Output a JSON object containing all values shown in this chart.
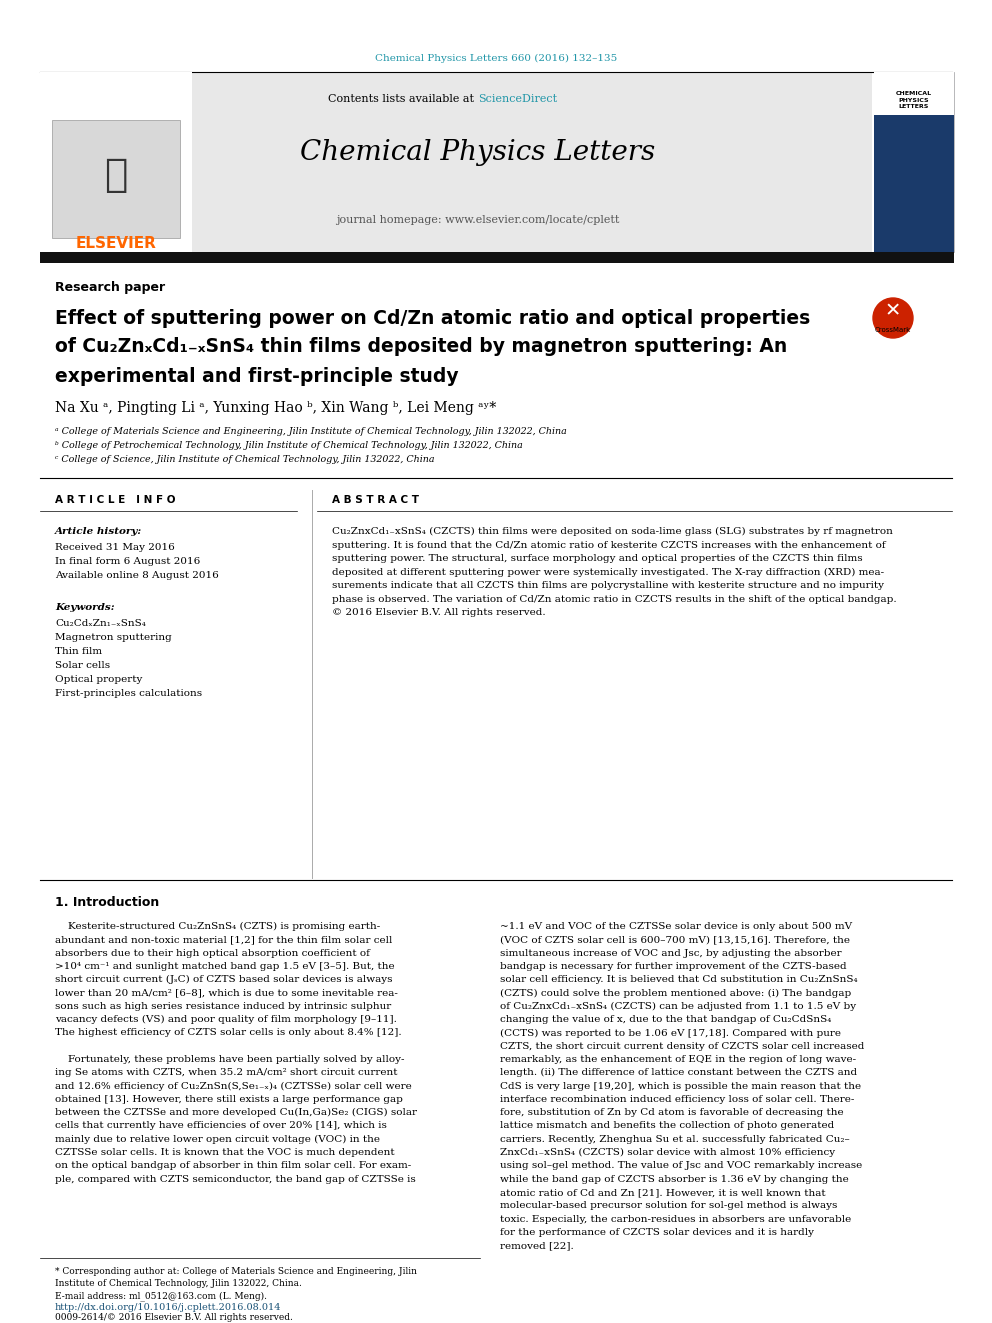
{
  "bg_color": "#ffffff",
  "top_citation": "Chemical Physics Letters 660 (2016) 132–135",
  "top_citation_color": "#2196a8",
  "journal_header_bg": "#e8e8e8",
  "contents_line": "Contents lists available at",
  "science_direct": "ScienceDirect",
  "science_direct_color": "#2196a8",
  "journal_name": "Chemical Physics Letters",
  "journal_homepage": "journal homepage: www.elsevier.com/locate/cplett",
  "section_label": "Research paper",
  "title_line1": "Effect of sputtering power on Cd/Zn atomic ratio and optical properties",
  "title_line2": "of Cu₂ZnₓCd₁₋ₓSnS₄ thin films deposited by magnetron sputtering: An",
  "title_line3": "experimental and first-principle study",
  "authors": "Na Xu ᵃ, Pingting Li ᵃ, Yunxing Hao ᵇ, Xin Wang ᵇ, Lei Meng ᵃʸ*",
  "affil_a": "ᵃ College of Materials Science and Engineering, Jilin Institute of Chemical Technology, Jilin 132022, China",
  "affil_b": "ᵇ College of Petrochemical Technology, Jilin Institute of Chemical Technology, Jilin 132022, China",
  "affil_c": "ᶜ College of Science, Jilin Institute of Chemical Technology, Jilin 132022, China",
  "article_info_label": "A R T I C L E   I N F O",
  "abstract_label": "A B S T R A C T",
  "article_history_label": "Article history:",
  "received": "Received 31 May 2016",
  "final_form": "In final form 6 August 2016",
  "available": "Available online 8 August 2016",
  "keywords_label": "Keywords:",
  "kw1": "Cu₂CdₓZn₁₋ₓSnS₄",
  "kw2": "Magnetron sputtering",
  "kw3": "Thin film",
  "kw4": "Solar cells",
  "kw5": "Optical property",
  "kw6": "First-principles calculations",
  "abstract_text": "Cu₂ZnxCd₁₋xSnS₄ (CZCTS) thin films were deposited on soda-lime glass (SLG) substrates by rf magnetron sputtering. It is found that the Cd/Zn atomic ratio of kesterite CZCTS increases with the enhancement of sputtering power. The structural, surface morphology and optical properties of the CZCTS thin films deposited at different sputtering power were systemically investigated. The X-ray diffraction (XRD) mea-surements indicate that all CZCTS thin films are polycrystalline with kesterite structure and no impurity phase is observed. The variation of Cd/Zn atomic ratio in CZCTS results in the shift of the optical bandgap.",
  "abstract_copyright": "© 2016 Elsevier B.V. All rights reserved.",
  "intro_title": "1. Introduction",
  "footer_note1": "* Corresponding author at: College of Materials Science and Engineering, Jilin",
  "footer_note2": "Institute of Chemical Technology, Jilin 132022, China.",
  "footer_email": "E-mail address: ml_0512@163.com (L. Meng).",
  "footer_doi": "http://dx.doi.org/10.1016/j.cplett.2016.08.014",
  "footer_issn": "0009-2614/© 2016 Elsevier B.V. All rights reserved."
}
